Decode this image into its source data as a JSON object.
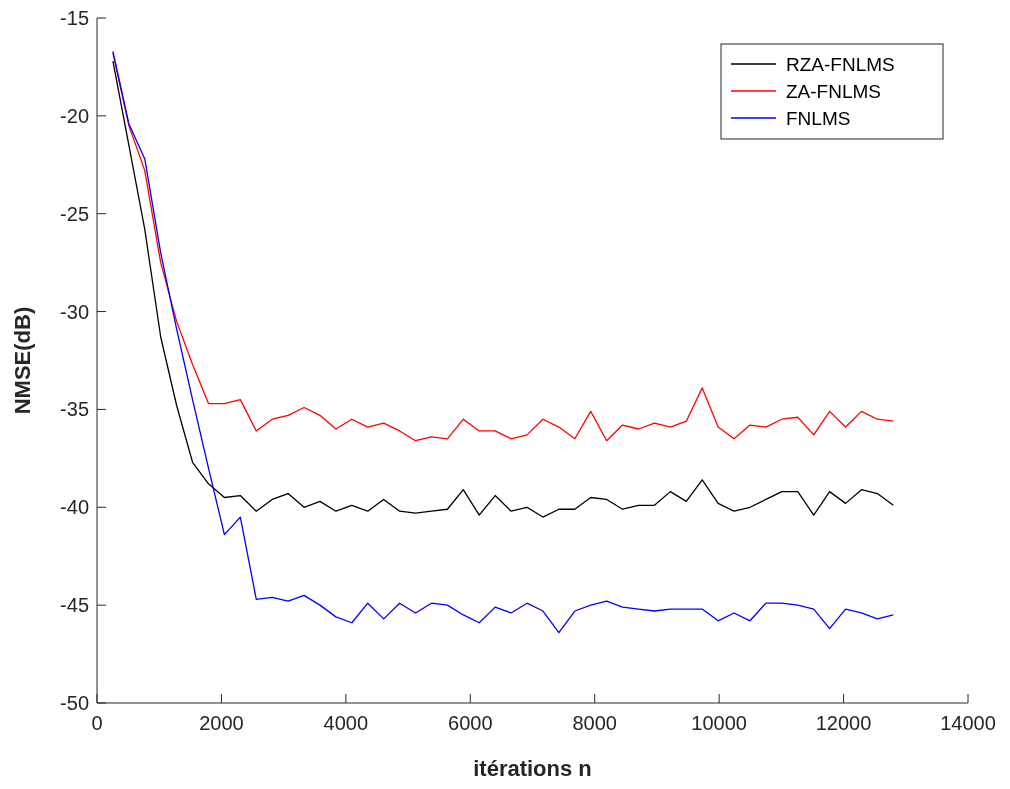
{
  "chart_data": {
    "type": "line",
    "xlabel": "itérations n",
    "ylabel": "NMSE(dB)",
    "x": [
      256,
      512,
      768,
      1024,
      1280,
      1536,
      1792,
      2048,
      2304,
      2560,
      2816,
      3072,
      3328,
      3584,
      3840,
      4096,
      4352,
      4608,
      4864,
      5120,
      5376,
      5632,
      5888,
      6144,
      6400,
      6656,
      6912,
      7168,
      7424,
      7680,
      7936,
      8192,
      8448,
      8704,
      8960,
      9216,
      9472,
      9728,
      9984,
      10240,
      10496,
      10752,
      11008,
      11264,
      11520,
      11776,
      12032,
      12288,
      12544,
      12800
    ],
    "series": [
      {
        "name": "RZA-FNLMS",
        "color": "#000000",
        "values": [
          -17.2,
          -21.5,
          -25.8,
          -31.3,
          -34.8,
          -37.7,
          -38.8,
          -39.5,
          -39.4,
          -40.2,
          -39.6,
          -39.3,
          -40.0,
          -39.7,
          -40.2,
          -39.9,
          -40.2,
          -39.6,
          -40.2,
          -40.3,
          -40.2,
          -40.1,
          -39.1,
          -40.4,
          -39.4,
          -40.2,
          -40.0,
          -40.5,
          -40.1,
          -40.1,
          -39.5,
          -39.6,
          -40.1,
          -39.9,
          -39.9,
          -39.2,
          -39.7,
          -38.6,
          -39.8,
          -40.2,
          -40.0,
          -39.6,
          -39.2,
          -39.2,
          -40.4,
          -39.2,
          -39.8,
          -39.1,
          -39.3,
          -39.9
        ]
      },
      {
        "name": "ZA-FNLMS",
        "color": "#ff0000",
        "values": [
          -16.8,
          -20.5,
          -22.8,
          -27.5,
          -30.5,
          -32.7,
          -34.7,
          -34.7,
          -34.5,
          -36.1,
          -35.5,
          -35.3,
          -34.9,
          -35.3,
          -36.0,
          -35.5,
          -35.9,
          -35.7,
          -36.1,
          -36.6,
          -36.4,
          -36.5,
          -35.5,
          -36.1,
          -36.1,
          -36.5,
          -36.3,
          -35.5,
          -35.9,
          -36.5,
          -35.1,
          -36.6,
          -35.8,
          -36.0,
          -35.7,
          -35.9,
          -35.6,
          -33.9,
          -35.9,
          -36.5,
          -35.8,
          -35.9,
          -35.5,
          -35.4,
          -36.3,
          -35.1,
          -35.9,
          -35.1,
          -35.5,
          -35.6
        ]
      },
      {
        "name": "FNLMS",
        "color": "#0000ff",
        "values": [
          -16.7,
          -20.4,
          -22.2,
          -27.0,
          -30.9,
          -34.5,
          -38.0,
          -41.4,
          -40.5,
          -44.7,
          -44.6,
          -44.8,
          -44.5,
          -45.0,
          -45.6,
          -45.9,
          -44.9,
          -45.7,
          -44.9,
          -45.4,
          -44.9,
          -45.0,
          -45.5,
          -45.9,
          -45.1,
          -45.4,
          -44.9,
          -45.3,
          -46.4,
          -45.3,
          -45.0,
          -44.8,
          -45.1,
          -45.2,
          -45.3,
          -45.2,
          -45.2,
          -45.2,
          -45.8,
          -45.4,
          -45.8,
          -44.9,
          -44.9,
          -45.0,
          -45.2,
          -46.2,
          -45.2,
          -45.4,
          -45.7,
          -45.5
        ]
      }
    ],
    "xlim": [
      0,
      14000
    ],
    "xticks": [
      0,
      2000,
      4000,
      6000,
      8000,
      10000,
      12000,
      14000
    ],
    "ylim": [
      -50,
      -15
    ],
    "yticks": [
      -50,
      -45,
      -40,
      -35,
      -30,
      -25,
      -20,
      -15
    ],
    "legend": "top right"
  }
}
